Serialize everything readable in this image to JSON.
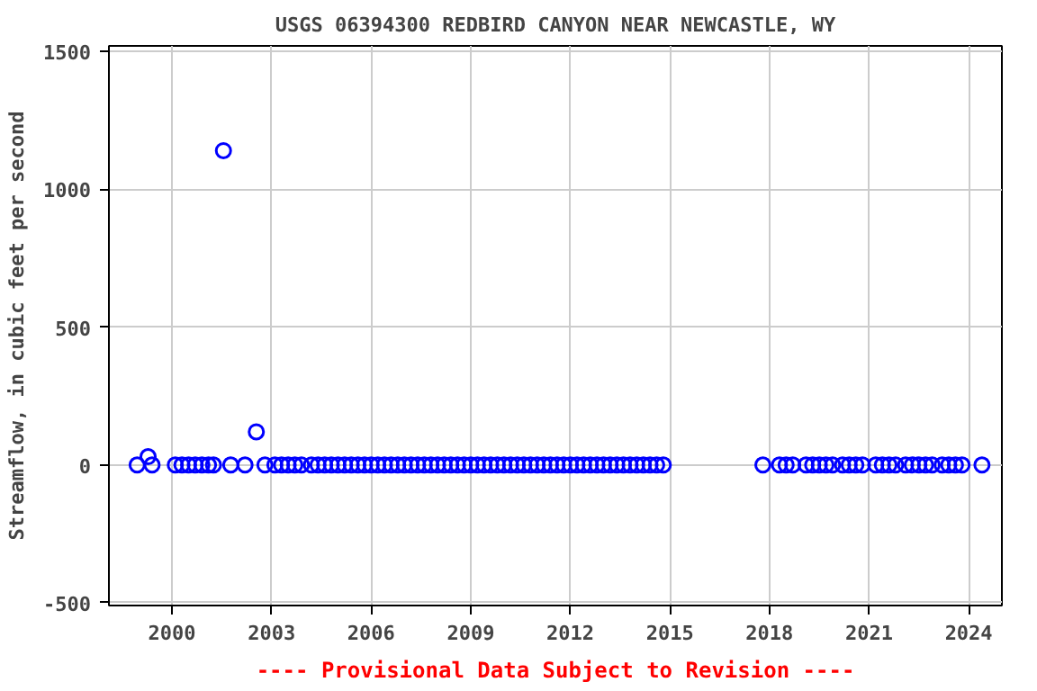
{
  "chart_data": {
    "type": "scatter",
    "title": "USGS 06394300 REDBIRD CANYON NEAR NEWCASTLE, WY",
    "ylabel": "Streamflow, in cubic feet per second",
    "annotations": [
      "---- Provisional Data Subject to Revision ----"
    ],
    "xlim": [
      1998.1,
      2025.0
    ],
    "ylim": [
      -510,
      1520
    ],
    "xticks": [
      2000,
      2003,
      2006,
      2009,
      2012,
      2015,
      2018,
      2021,
      2024
    ],
    "yticks": [
      -500,
      0,
      500,
      1000,
      1500
    ],
    "grid": true,
    "marker": "circle",
    "series": [
      {
        "color": "#0000ff",
        "x": [
          1998.95,
          1999.28,
          1999.4,
          2000.1,
          2000.3,
          2000.5,
          2000.7,
          2000.9,
          2001.1,
          2001.25,
          2001.55,
          2001.77,
          2002.2,
          2002.54,
          2002.8,
          2003.1,
          2003.3,
          2003.5,
          2003.7,
          2003.9,
          2004.2,
          2004.4,
          2004.6,
          2004.8,
          2005.0,
          2005.2,
          2005.4,
          2005.6,
          2005.8,
          2006.0,
          2006.2,
          2006.4,
          2006.6,
          2006.8,
          2007.0,
          2007.2,
          2007.4,
          2007.6,
          2007.8,
          2008.0,
          2008.2,
          2008.4,
          2008.6,
          2008.8,
          2009.0,
          2009.2,
          2009.4,
          2009.6,
          2009.8,
          2010.0,
          2010.2,
          2010.4,
          2010.6,
          2010.8,
          2011.0,
          2011.2,
          2011.4,
          2011.6,
          2011.8,
          2012.0,
          2012.2,
          2012.4,
          2012.6,
          2012.8,
          2013.0,
          2013.2,
          2013.4,
          2013.6,
          2013.8,
          2014.0,
          2014.2,
          2014.4,
          2014.6,
          2014.8,
          2017.8,
          2018.3,
          2018.5,
          2018.7,
          2019.1,
          2019.3,
          2019.5,
          2019.7,
          2019.9,
          2020.2,
          2020.4,
          2020.6,
          2020.8,
          2021.2,
          2021.4,
          2021.6,
          2021.8,
          2022.1,
          2022.3,
          2022.5,
          2022.7,
          2022.9,
          2023.2,
          2023.4,
          2023.6,
          2023.8,
          2024.4
        ],
        "values": [
          0,
          30,
          0,
          0,
          0,
          0,
          0,
          0,
          0,
          0,
          1140,
          0,
          0,
          120,
          0,
          0,
          0,
          0,
          0,
          0,
          0,
          0,
          0,
          0,
          0,
          0,
          0,
          0,
          0,
          0,
          0,
          0,
          0,
          0,
          0,
          0,
          0,
          0,
          0,
          0,
          0,
          0,
          0,
          0,
          0,
          0,
          0,
          0,
          0,
          0,
          0,
          0,
          0,
          0,
          0,
          0,
          0,
          0,
          0,
          0,
          0,
          0,
          0,
          0,
          0,
          0,
          0,
          0,
          0,
          0,
          0,
          0,
          0,
          0,
          0,
          0,
          0,
          0,
          0,
          0,
          0,
          0,
          0,
          0,
          0,
          0,
          0,
          0,
          0,
          0,
          0,
          0,
          0,
          0,
          0,
          0,
          0,
          0,
          0,
          0,
          0
        ]
      }
    ]
  }
}
